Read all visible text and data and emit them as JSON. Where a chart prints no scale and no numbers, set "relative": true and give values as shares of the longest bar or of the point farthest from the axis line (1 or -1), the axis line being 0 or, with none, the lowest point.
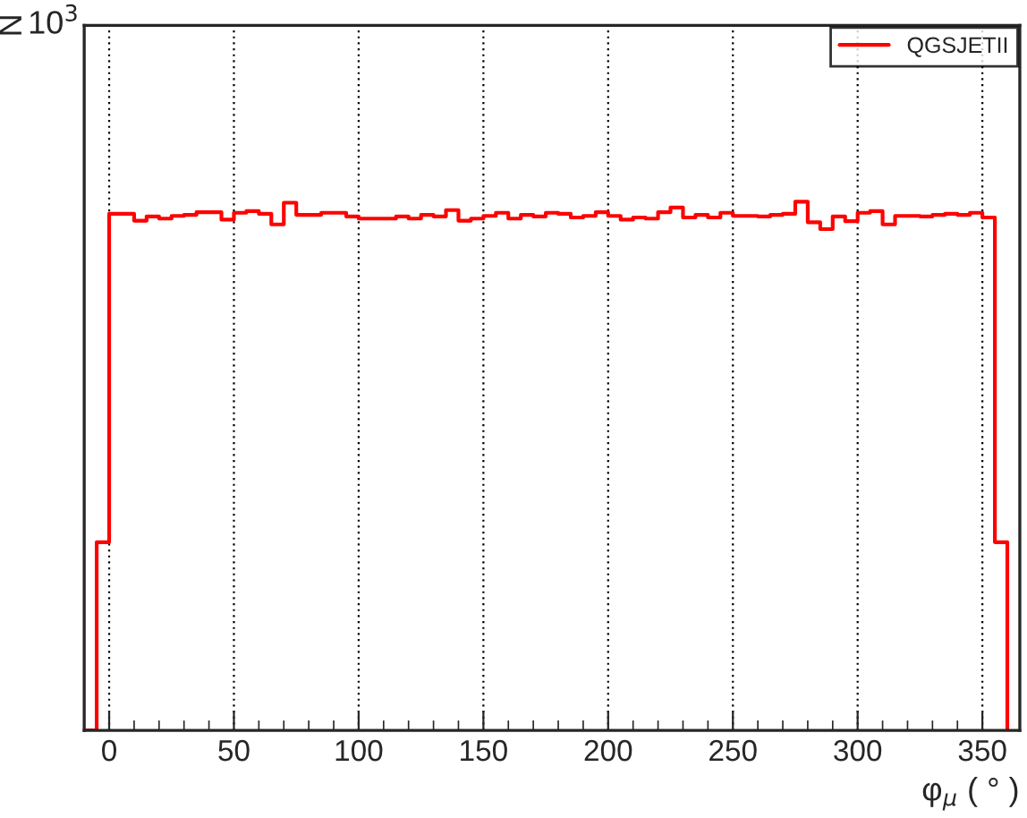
{
  "chart_data": {
    "type": "step",
    "xlabel": "φ$_{μ}$ ( ° )",
    "relative": true,
    "annotations": [
      "N",
      "10$^{3}$"
    ],
    "x": [
      -10,
      -5,
      0,
      5,
      10,
      15,
      20,
      25,
      30,
      35,
      40,
      45,
      50,
      55,
      60,
      65,
      70,
      75,
      80,
      85,
      90,
      95,
      100,
      105,
      110,
      115,
      120,
      125,
      130,
      135,
      140,
      145,
      150,
      155,
      160,
      165,
      170,
      175,
      180,
      185,
      190,
      195,
      200,
      205,
      210,
      215,
      220,
      225,
      230,
      235,
      240,
      245,
      250,
      255,
      260,
      265,
      270,
      275,
      280,
      285,
      290,
      295,
      300,
      305,
      310,
      315,
      320,
      325,
      330,
      335,
      340,
      345,
      350,
      355,
      360
    ],
    "series": [
      {
        "name": "QGSJETII",
        "color": "#ff0000",
        "values": [
          0,
          0.356,
          0.977,
          0.977,
          0.964,
          0.972,
          0.968,
          0.973,
          0.975,
          0.98,
          0.98,
          0.966,
          0.979,
          0.982,
          0.977,
          0.957,
          0.998,
          0.975,
          0.975,
          0.979,
          0.979,
          0.972,
          0.968,
          0.968,
          0.968,
          0.972,
          0.968,
          0.975,
          0.972,
          0.984,
          0.964,
          0.968,
          0.973,
          0.979,
          0.968,
          0.975,
          0.972,
          0.979,
          0.977,
          0.97,
          0.973,
          0.98,
          0.973,
          0.966,
          0.97,
          0.968,
          0.98,
          0.989,
          0.97,
          0.975,
          0.97,
          0.979,
          0.973,
          0.973,
          0.972,
          0.975,
          0.977,
          1,
          0.961,
          0.948,
          0.972,
          0.963,
          0.979,
          0.982,
          0.957,
          0.973,
          0.973,
          0.972,
          0.975,
          0.977,
          0.975,
          0.979,
          0.97,
          0.356,
          0
        ]
      }
    ],
    "xlim": [
      -10,
      365
    ],
    "xticks": [
      0,
      50,
      100,
      150,
      200,
      250,
      300,
      350
    ],
    "grid": "x",
    "legend": "top right"
  }
}
